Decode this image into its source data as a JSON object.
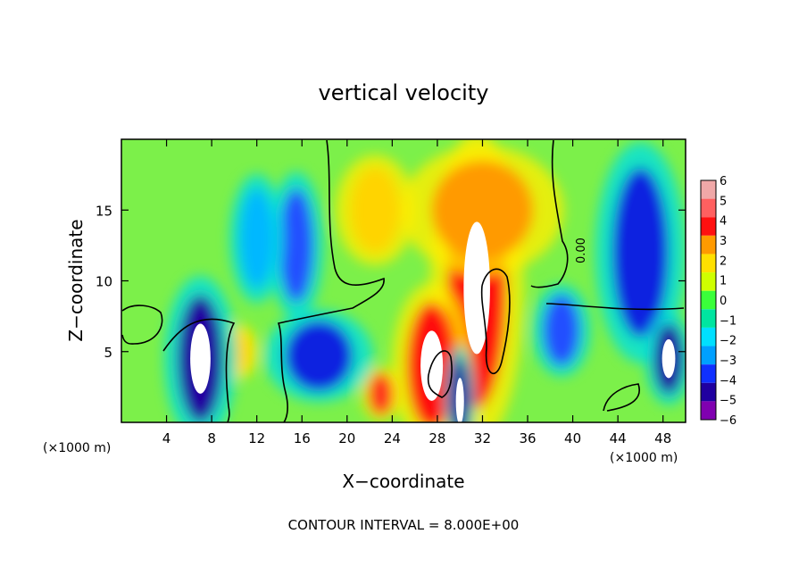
{
  "chart_data": {
    "type": "heatmap",
    "title": "vertical velocity",
    "xlabel": "X−coordinate",
    "ylabel": "Z−coordinate",
    "x_unit_left": "(×1000 m)",
    "x_unit_right": "(×1000 m)",
    "footer": "CONTOUR INTERVAL = 8.000E+00",
    "contour_label": "0.00",
    "xlim": [
      0,
      50
    ],
    "ylim": [
      0,
      20
    ],
    "x_ticks": [
      4,
      8,
      12,
      16,
      20,
      24,
      28,
      32,
      36,
      40,
      44,
      48
    ],
    "y_ticks": [
      5,
      10,
      15
    ],
    "colorbar": {
      "ticks": [
        "6",
        "5",
        "4",
        "3",
        "2",
        "1",
        "0",
        "−1",
        "−2",
        "−3",
        "−4",
        "−5",
        "−6"
      ],
      "colors": [
        "#f0a8a8",
        "#ff6060",
        "#ff1010",
        "#ff9a00",
        "#ffe000",
        "#cfff00",
        "#3aff3a",
        "#00e5a0",
        "#00e0ff",
        "#00a0ff",
        "#1030ff",
        "#2000a0",
        "#8000b0"
      ]
    },
    "features": [
      {
        "kind": "updraft",
        "x": 31.5,
        "z": 9.5,
        "rx": 2.6,
        "rz": 8.5,
        "value": 6
      },
      {
        "kind": "updraft",
        "x": 27.5,
        "z": 4.0,
        "rx": 2.2,
        "rz": 4.5,
        "value": 6
      },
      {
        "kind": "updraft",
        "x": 32.0,
        "z": 15.0,
        "rx": 4.5,
        "rz": 3.5,
        "value": 3
      },
      {
        "kind": "updraft",
        "x": 22.5,
        "z": 15.0,
        "rx": 2.2,
        "rz": 3.0,
        "value": 2.5
      },
      {
        "kind": "updraft",
        "x": 23.0,
        "z": 2.0,
        "rx": 1.1,
        "rz": 1.5,
        "value": 5
      },
      {
        "kind": "updraft",
        "x": 10.5,
        "z": 5.0,
        "rx": 1.0,
        "rz": 1.5,
        "value": 2
      },
      {
        "kind": "downdraft",
        "x": 7.0,
        "z": 4.5,
        "rx": 2.0,
        "rz": 4.5,
        "value": -6
      },
      {
        "kind": "downdraft",
        "x": 17.5,
        "z": 4.7,
        "rx": 3.0,
        "rz": 2.5,
        "value": -5
      },
      {
        "kind": "downdraft",
        "x": 15.5,
        "z": 12.5,
        "rx": 1.5,
        "rz": 4.0,
        "value": -4
      },
      {
        "kind": "downdraft",
        "x": 12.0,
        "z": 13.0,
        "rx": 1.5,
        "rz": 3.5,
        "value": -3
      },
      {
        "kind": "downdraft",
        "x": 30.0,
        "z": 1.5,
        "rx": 0.8,
        "rz": 3.0,
        "value": -6
      },
      {
        "kind": "downdraft",
        "x": 39.0,
        "z": 6.5,
        "rx": 1.6,
        "rz": 2.5,
        "value": -4
      },
      {
        "kind": "downdraft",
        "x": 46.0,
        "z": 12.0,
        "rx": 2.5,
        "rz": 6.0,
        "value": -5
      },
      {
        "kind": "downdraft",
        "x": 48.5,
        "z": 4.5,
        "rx": 1.3,
        "rz": 2.5,
        "value": -6
      }
    ]
  }
}
